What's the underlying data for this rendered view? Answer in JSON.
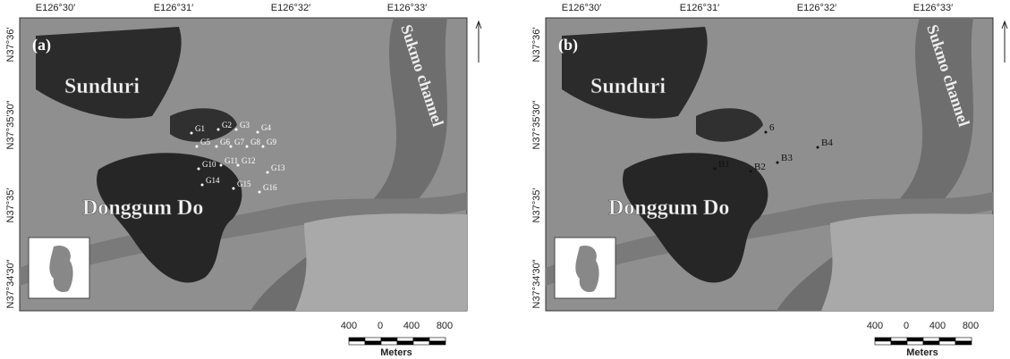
{
  "panels": [
    {
      "label": "(a)",
      "lon_ticks": [
        "E126°30′",
        "E126°31′",
        "E126°32′",
        "E126°33′"
      ],
      "lat_ticks": [
        "N37°36′",
        "N37°35′30″",
        "N37°35′",
        "N37°34′30″"
      ],
      "places": [
        "Sunduri",
        "Donggum Do",
        "Sukmo channel"
      ],
      "stations": [
        "G1",
        "G2",
        "G3",
        "G4",
        "G5",
        "G6",
        "G7",
        "G8",
        "G9",
        "G10",
        "G11",
        "G12",
        "G13",
        "G14",
        "G15",
        "G16"
      ],
      "scale_ticks": [
        "400",
        "0",
        "400",
        "800"
      ],
      "scale_unit": "Meters"
    },
    {
      "label": "(b)",
      "lon_ticks": [
        "E126°30′",
        "E126°31′",
        "E126°32′",
        "E126°33′"
      ],
      "lat_ticks": [
        "N37°36′",
        "N37°35′30″",
        "N37°35′",
        "N37°34′30″"
      ],
      "places": [
        "Sunduri",
        "Donggum Do",
        "Sukmo channel"
      ],
      "stations": [
        "B1",
        "B2",
        "B3",
        "B4",
        "6"
      ],
      "scale_ticks": [
        "400",
        "0",
        "400",
        "800"
      ],
      "scale_unit": "Meters"
    }
  ]
}
